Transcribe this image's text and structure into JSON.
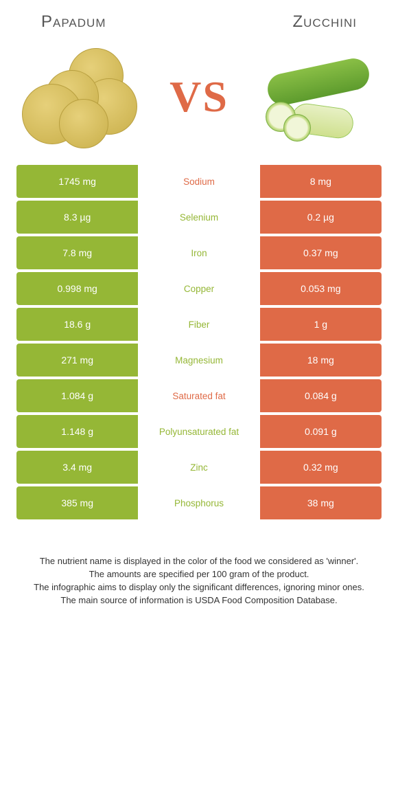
{
  "titles": {
    "left": "Papadum",
    "right": "Zucchini"
  },
  "vs_label": "VS",
  "colors": {
    "left": "#95b736",
    "right": "#df6a47",
    "left_winner_text": "#95b736",
    "right_winner_text": "#df6a47",
    "row_gap": "#ffffff"
  },
  "rows": [
    {
      "name": "Sodium",
      "left": "1745 mg",
      "right": "8 mg",
      "winner": "right"
    },
    {
      "name": "Selenium",
      "left": "8.3 µg",
      "right": "0.2 µg",
      "winner": "left"
    },
    {
      "name": "Iron",
      "left": "7.8 mg",
      "right": "0.37 mg",
      "winner": "left"
    },
    {
      "name": "Copper",
      "left": "0.998 mg",
      "right": "0.053 mg",
      "winner": "left"
    },
    {
      "name": "Fiber",
      "left": "18.6 g",
      "right": "1 g",
      "winner": "left"
    },
    {
      "name": "Magnesium",
      "left": "271 mg",
      "right": "18 mg",
      "winner": "left"
    },
    {
      "name": "Saturated fat",
      "left": "1.084 g",
      "right": "0.084 g",
      "winner": "right"
    },
    {
      "name": "Polyunsaturated fat",
      "left": "1.148 g",
      "right": "0.091 g",
      "winner": "left"
    },
    {
      "name": "Zinc",
      "left": "3.4 mg",
      "right": "0.32 mg",
      "winner": "left"
    },
    {
      "name": "Phosphorus",
      "left": "385 mg",
      "right": "38 mg",
      "winner": "left"
    }
  ],
  "footer": {
    "l1": "The nutrient name is displayed in the color of the food we considered as 'winner'.",
    "l2": "The amounts are specified per 100 gram of the product.",
    "l3": "The infographic aims to display only the significant differences, ignoring minor ones.",
    "l4": "The main source of information is USDA Food Composition Database."
  }
}
